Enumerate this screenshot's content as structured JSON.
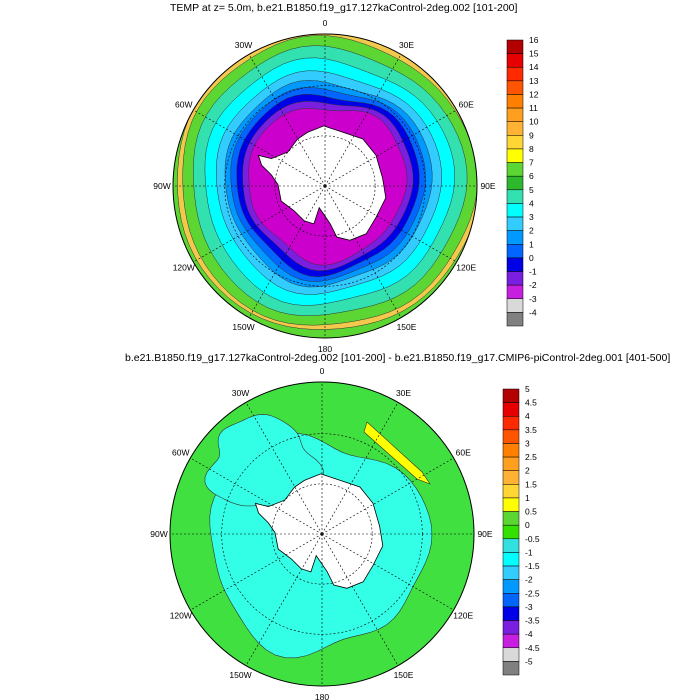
{
  "panels": [
    {
      "title": "TEMP at z=   5.0m, b.e21.B1850.f19_g17.127kaControl-2deg.002 [101-200]",
      "lon_labels": [
        "0",
        "30E",
        "60E",
        "90E",
        "120E",
        "150E",
        "180",
        "150W",
        "120W",
        "90W",
        "60W",
        "30W"
      ],
      "colorbar": {
        "labels": [
          "16",
          "15",
          "14",
          "13",
          "12",
          "11",
          "10",
          "9",
          "8",
          "7",
          "6",
          "5",
          "4",
          "3",
          "2",
          "1",
          "0",
          "-1",
          "-2",
          "-3",
          "-4"
        ],
        "colors": [
          "#b30000",
          "#e60000",
          "#ff2a00",
          "#ff5500",
          "#ff8000",
          "#ff9f1f",
          "#ffb233",
          "#ffd633",
          "#ffff00",
          "#5cd633",
          "#2eb82e",
          "#33e0b0",
          "#00ffff",
          "#33ccff",
          "#0099ff",
          "#0066ff",
          "#0000e6",
          "#7a1fe0",
          "#c71fe0",
          "#d9d9d9",
          "#808080"
        ]
      },
      "field": {
        "ice_rim": "#cc00cc",
        "contours_dark": "#444444"
      }
    },
    {
      "title": "b.e21.B1850.f19_g17.127kaControl-2deg.002 [101-200] - b.e21.B1850.f19_g17.CMIP6-piControl-2deg.001 [401-500]",
      "lon_labels": [
        "0",
        "30E",
        "60E",
        "90E",
        "120E",
        "150E",
        "180",
        "150W",
        "120W",
        "90W",
        "60W",
        "30W"
      ],
      "colorbar": {
        "labels": [
          "5",
          "4.5",
          "4",
          "3.5",
          "3",
          "2.5",
          "2",
          "1.5",
          "1",
          "0.5",
          "0",
          "-0.5",
          "-1",
          "-1.5",
          "-2",
          "-2.5",
          "-3",
          "-3.5",
          "-4",
          "-4.5",
          "-5"
        ],
        "colors": [
          "#b30000",
          "#e60000",
          "#ff2a00",
          "#ff5500",
          "#ff8000",
          "#ff9f1f",
          "#ffb233",
          "#ffd633",
          "#ffff00",
          "#5cd633",
          "#33e000",
          "#33e0e0",
          "#00ffff",
          "#33ccff",
          "#0099ff",
          "#0066ff",
          "#0000e6",
          "#7a1fe0",
          "#c71fe0",
          "#d9d9d9",
          "#808080"
        ]
      },
      "field": {
        "main": "#40e040",
        "anomaly_neg": "#33ffe6",
        "anomaly_pos": "#ffff00"
      }
    }
  ]
}
